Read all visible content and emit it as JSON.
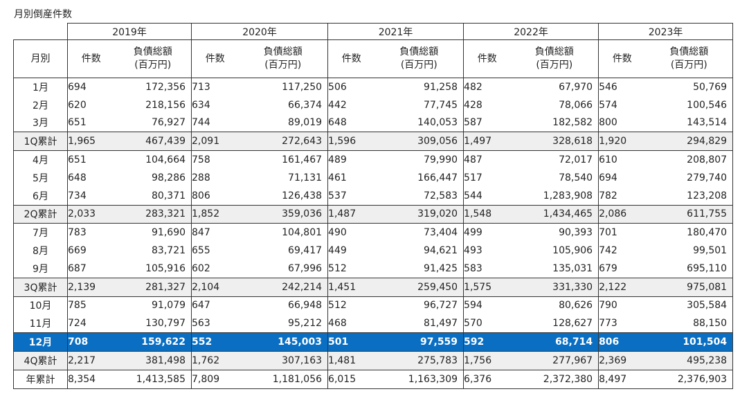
{
  "title": "月別倒産件数",
  "header": {
    "month_label": "月別",
    "count_label": "件数",
    "debt_label": "負債総額",
    "debt_unit": "(百万円)",
    "years": [
      "2019年",
      "2020年",
      "2021年",
      "2022年",
      "2023年"
    ]
  },
  "rows": [
    {
      "label": "1月",
      "type": "month",
      "values": [
        "694",
        "172,356",
        "713",
        "117,250",
        "506",
        "91,258",
        "482",
        "67,970",
        "546",
        "50,769"
      ]
    },
    {
      "label": "2月",
      "type": "month",
      "values": [
        "620",
        "218,156",
        "634",
        "66,374",
        "442",
        "77,745",
        "428",
        "78,066",
        "574",
        "100,546"
      ]
    },
    {
      "label": "3月",
      "type": "month",
      "values": [
        "651",
        "76,927",
        "744",
        "89,019",
        "648",
        "140,053",
        "587",
        "182,582",
        "800",
        "143,514"
      ]
    },
    {
      "label": "1Q累計",
      "type": "sub",
      "values": [
        "1,965",
        "467,439",
        "2,091",
        "272,643",
        "1,596",
        "309,056",
        "1,497",
        "328,618",
        "1,920",
        "294,829"
      ]
    },
    {
      "label": "4月",
      "type": "month",
      "values": [
        "651",
        "104,664",
        "758",
        "161,467",
        "489",
        "79,990",
        "487",
        "72,017",
        "610",
        "208,807"
      ]
    },
    {
      "label": "5月",
      "type": "month",
      "values": [
        "648",
        "98,286",
        "288",
        "71,131",
        "461",
        "166,447",
        "517",
        "78,540",
        "694",
        "279,740"
      ]
    },
    {
      "label": "6月",
      "type": "month",
      "values": [
        "734",
        "80,371",
        "806",
        "126,438",
        "537",
        "72,583",
        "544",
        "1,283,908",
        "782",
        "123,208"
      ]
    },
    {
      "label": "2Q累計",
      "type": "sub",
      "values": [
        "2,033",
        "283,321",
        "1,852",
        "359,036",
        "1,487",
        "319,020",
        "1,548",
        "1,434,465",
        "2,086",
        "611,755"
      ]
    },
    {
      "label": "7月",
      "type": "month",
      "values": [
        "783",
        "91,690",
        "847",
        "104,801",
        "490",
        "73,404",
        "499",
        "90,393",
        "701",
        "180,470"
      ]
    },
    {
      "label": "8月",
      "type": "month",
      "values": [
        "669",
        "83,721",
        "655",
        "69,417",
        "449",
        "94,621",
        "493",
        "105,906",
        "742",
        "99,501"
      ]
    },
    {
      "label": "9月",
      "type": "month",
      "values": [
        "687",
        "105,916",
        "602",
        "67,996",
        "512",
        "91,425",
        "583",
        "135,031",
        "679",
        "695,110"
      ]
    },
    {
      "label": "3Q累計",
      "type": "sub",
      "values": [
        "2,139",
        "281,327",
        "2,104",
        "242,214",
        "1,451",
        "259,450",
        "1,575",
        "331,330",
        "2,122",
        "975,081"
      ]
    },
    {
      "label": "10月",
      "type": "month",
      "values": [
        "785",
        "91,079",
        "647",
        "66,948",
        "512",
        "96,727",
        "594",
        "80,626",
        "790",
        "305,584"
      ]
    },
    {
      "label": "11月",
      "type": "month",
      "values": [
        "724",
        "130,797",
        "563",
        "95,212",
        "468",
        "81,497",
        "570",
        "128,627",
        "773",
        "88,150"
      ]
    },
    {
      "label": "12月",
      "type": "hl",
      "values": [
        "708",
        "159,622",
        "552",
        "145,003",
        "501",
        "97,559",
        "592",
        "68,714",
        "806",
        "101,504"
      ]
    },
    {
      "label": "4Q累計",
      "type": "sub",
      "values": [
        "2,217",
        "381,498",
        "1,762",
        "307,163",
        "1,481",
        "275,783",
        "1,756",
        "277,967",
        "2,369",
        "495,238"
      ]
    },
    {
      "label": "年累計",
      "type": "tot",
      "values": [
        "8,354",
        "1,413,585",
        "7,809",
        "1,181,056",
        "6,015",
        "1,163,309",
        "6,376",
        "2,372,380",
        "8,497",
        "2,376,903"
      ]
    }
  ]
}
